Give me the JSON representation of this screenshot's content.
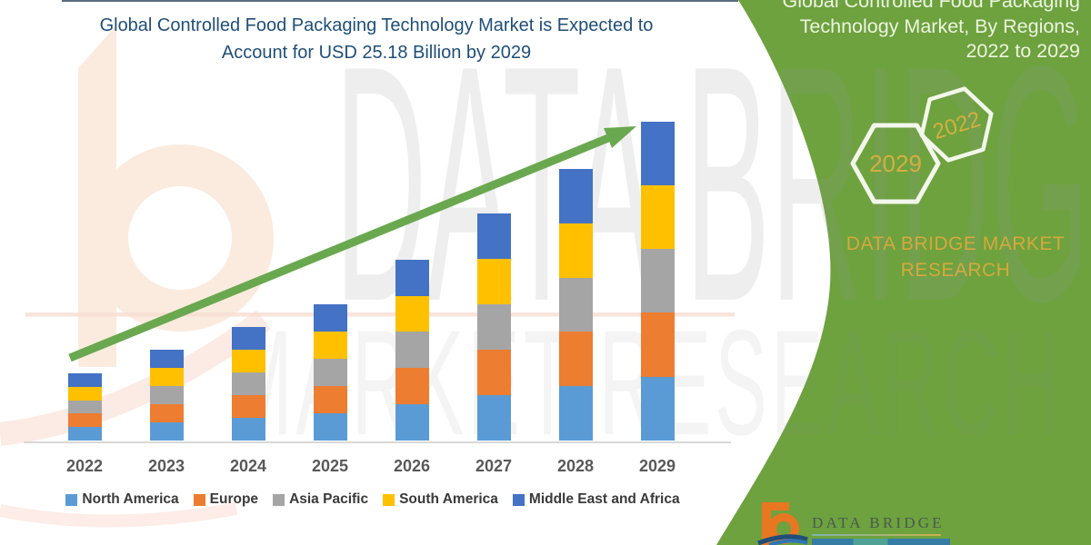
{
  "title": {
    "line1": "Global Controlled Food Packaging Technology Market is Expected to",
    "line2": "Account for USD 25.18 Billion by 2029"
  },
  "watermark": {
    "line1": "DATA BRIDGE",
    "line2": "MARKET RESEARCH"
  },
  "chart_data": {
    "type": "bar",
    "stacked": true,
    "title": "Global Controlled Food Packaging Technology Market is Expected to Account for USD 25.18 Billion by 2029",
    "unit": "USD Billion",
    "categories": [
      "2022",
      "2023",
      "2024",
      "2025",
      "2026",
      "2027",
      "2028",
      "2029"
    ],
    "totals_usd_billion": [
      5.31,
      7.18,
      8.97,
      10.76,
      14.28,
      17.94,
      21.45,
      25.18
    ],
    "series": [
      {
        "name": "North America",
        "color": "#5B9BD5",
        "values": [
          1.06,
          1.44,
          1.79,
          2.15,
          2.86,
          3.59,
          4.29,
          5.04
        ]
      },
      {
        "name": "Europe",
        "color": "#ED7D31",
        "values": [
          1.06,
          1.44,
          1.79,
          2.15,
          2.86,
          3.59,
          4.29,
          5.04
        ]
      },
      {
        "name": "Asia Pacific",
        "color": "#A5A5A5",
        "values": [
          1.06,
          1.44,
          1.79,
          2.15,
          2.86,
          3.59,
          4.29,
          5.04
        ]
      },
      {
        "name": "South America",
        "color": "#FFC000",
        "values": [
          1.06,
          1.44,
          1.79,
          2.15,
          2.86,
          3.59,
          4.29,
          5.04
        ]
      },
      {
        "name": "Middle East and Africa",
        "color": "#4472C4",
        "values": [
          1.07,
          1.42,
          1.81,
          2.16,
          2.84,
          3.58,
          4.29,
          5.02
        ]
      }
    ],
    "ylim": [
      0,
      26
    ],
    "grid": false,
    "legend_position": "bottom",
    "annotations": [
      "upward green trend arrow from 2022 toward 2029"
    ]
  },
  "panel": {
    "heading_lines": [
      "Global Controlled Food Packaging",
      "Technology Market, By Regions,",
      "2022 to 2029"
    ],
    "hexagons": [
      {
        "label": "2029"
      },
      {
        "label": "2022"
      }
    ],
    "brand_line1": "DATA BRIDGE MARKET",
    "brand_line2": "RESEARCH"
  },
  "footer": {
    "brand": "DATA BRIDGE"
  },
  "colors": {
    "panel_green": "#6DA23E",
    "arrow_green": "#69A84F",
    "title_blue": "#1F4E79",
    "gold_text": "#D5A93C",
    "hexagon_outline": "#F3F7EB",
    "axis_gray": "#D8D8D8",
    "year_label_gray": "#595959",
    "watermark_peach": "#FBE9DC",
    "logo_orange": "#E87722"
  }
}
